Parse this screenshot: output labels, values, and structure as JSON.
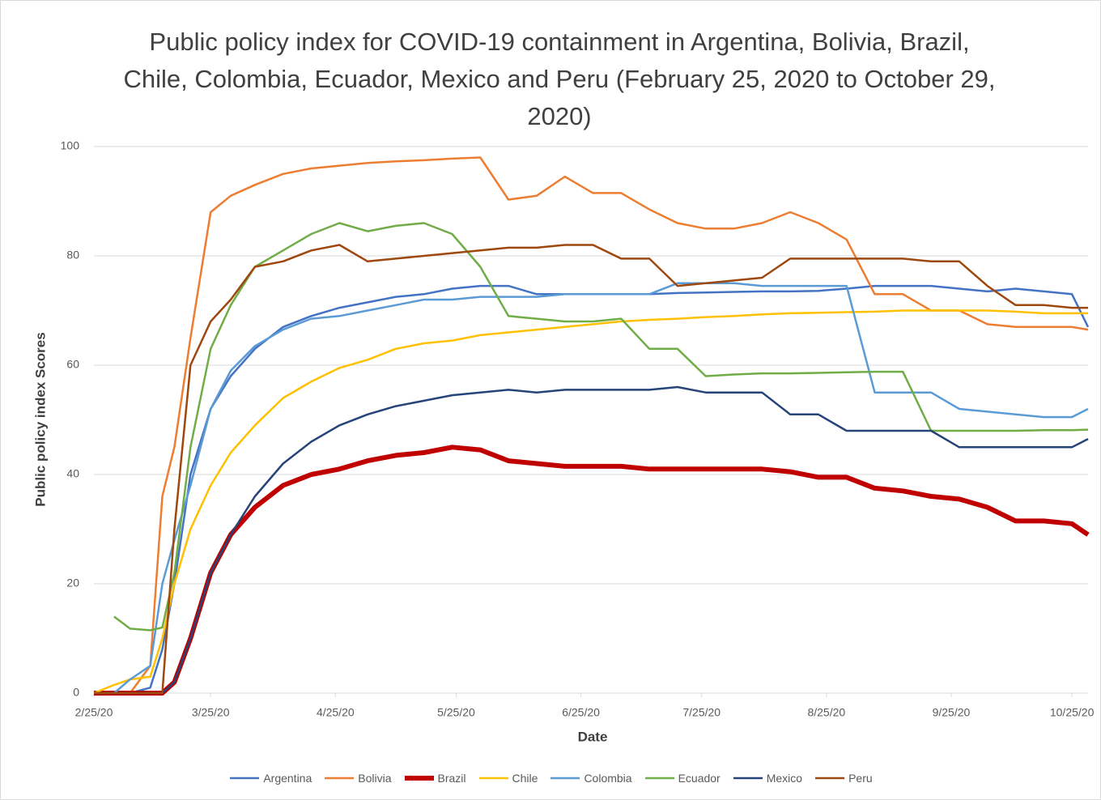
{
  "chart_data": {
    "type": "line",
    "title": "Public policy index for COVID-19 containment in Argentina, Bolivia, Brazil, Chile, Colombia, Ecuador, Mexico and Peru (February 25, 2020 to October 29, 2020)",
    "x_label": "Date",
    "y_label": "Public policy index Scores",
    "xlim": [
      "2020-02-25",
      "2020-10-29"
    ],
    "xticks": [
      {
        "value": "2020-02-25",
        "label": "2/25/20"
      },
      {
        "value": "2020-03-25",
        "label": "3/25/20"
      },
      {
        "value": "2020-04-25",
        "label": "4/25/20"
      },
      {
        "value": "2020-05-25",
        "label": "5/25/20"
      },
      {
        "value": "2020-06-25",
        "label": "6/25/20"
      },
      {
        "value": "2020-07-25",
        "label": "7/25/20"
      },
      {
        "value": "2020-08-25",
        "label": "8/25/20"
      },
      {
        "value": "2020-09-25",
        "label": "9/25/20"
      },
      {
        "value": "2020-10-25",
        "label": "10/25/20"
      }
    ],
    "ylim": [
      0,
      100
    ],
    "yticks": [
      0,
      20,
      40,
      60,
      80,
      100
    ],
    "grid": true,
    "legend": "bottom",
    "x": [
      "2020-02-25",
      "2020-03-01",
      "2020-03-05",
      "2020-03-10",
      "2020-03-13",
      "2020-03-16",
      "2020-03-20",
      "2020-03-25",
      "2020-03-30",
      "2020-04-05",
      "2020-04-12",
      "2020-04-19",
      "2020-04-26",
      "2020-05-03",
      "2020-05-10",
      "2020-05-17",
      "2020-05-24",
      "2020-05-31",
      "2020-06-07",
      "2020-06-14",
      "2020-06-21",
      "2020-06-28",
      "2020-07-05",
      "2020-07-12",
      "2020-07-19",
      "2020-07-26",
      "2020-08-02",
      "2020-08-09",
      "2020-08-16",
      "2020-08-23",
      "2020-08-30",
      "2020-09-06",
      "2020-09-13",
      "2020-09-20",
      "2020-09-27",
      "2020-10-04",
      "2020-10-11",
      "2020-10-18",
      "2020-10-25",
      "2020-10-29"
    ],
    "series": [
      {
        "name": "Argentina",
        "color": "#4472c4",
        "width": 2.5,
        "values": [
          0,
          0,
          0,
          1,
          8,
          20,
          40,
          52,
          58,
          63,
          67,
          69,
          70.5,
          71.5,
          72.5,
          73,
          74,
          74.5,
          74.5,
          73,
          73,
          73,
          73,
          73,
          73.2,
          73.3,
          73.4,
          73.5,
          73.5,
          73.6,
          74,
          74.5,
          74.5,
          74.5,
          74,
          73.5,
          74,
          73.5,
          73,
          67
        ]
      },
      {
        "name": "Bolivia",
        "color": "#ed7d31",
        "width": 2.5,
        "values": [
          0,
          0,
          0,
          5,
          36,
          45,
          65,
          88,
          91,
          93,
          95,
          96,
          96.5,
          97,
          97.3,
          97.5,
          97.8,
          98,
          90.3,
          91,
          94.5,
          91.5,
          91.5,
          88.5,
          86,
          85,
          85,
          86,
          88,
          86,
          83,
          73,
          73,
          70,
          70,
          67.5,
          67,
          67,
          67,
          66.5
        ]
      },
      {
        "name": "Brazil",
        "color": "#c00000",
        "width": 6,
        "values": [
          0,
          0,
          0,
          0,
          0,
          2,
          10,
          22,
          29,
          34,
          38,
          40,
          41,
          42.5,
          43.5,
          44,
          45,
          44.5,
          42.5,
          42,
          41.5,
          41.5,
          41.5,
          41,
          41,
          41,
          41,
          41,
          40.5,
          39.5,
          39.5,
          37.5,
          37,
          36,
          35.5,
          34,
          31.5,
          31.5,
          31,
          29
        ]
      },
      {
        "name": "Chile",
        "color": "#ffc000",
        "width": 2.5,
        "values": [
          0,
          1.5,
          2.5,
          3,
          10,
          20,
          30,
          38,
          44,
          49,
          54,
          57,
          59.5,
          61,
          63,
          64,
          64.5,
          65.5,
          66,
          66.5,
          67,
          67.5,
          68,
          68.3,
          68.5,
          68.8,
          69,
          69.3,
          69.5,
          69.6,
          69.7,
          69.8,
          70,
          70,
          70,
          70,
          69.8,
          69.5,
          69.5,
          69.5
        ]
      },
      {
        "name": "Colombia",
        "color": "#5b9bd5",
        "width": 2.5,
        "values": [
          0,
          0,
          2.5,
          5,
          20,
          28,
          38,
          52,
          59,
          63.5,
          66.5,
          68.5,
          69,
          70,
          71,
          72,
          72,
          72.5,
          72.5,
          72.5,
          73,
          73,
          73,
          73,
          75,
          75,
          75,
          74.5,
          74.5,
          74.5,
          74.5,
          55,
          55,
          55,
          52,
          51.5,
          51,
          50.5,
          50.5,
          52
        ]
      },
      {
        "name": "Ecuador",
        "color": "#70ad47",
        "width": 2.5,
        "values": [
          null,
          14,
          11.8,
          11.5,
          12,
          22,
          45,
          63,
          71,
          78,
          81,
          84,
          86,
          84.5,
          85.5,
          86,
          84,
          78,
          69,
          68.5,
          68,
          68,
          68.5,
          63,
          63,
          58,
          58.3,
          58.5,
          58.5,
          58.6,
          58.7,
          58.8,
          58.8,
          48,
          48,
          48,
          48,
          48.1,
          48.1,
          48.2
        ]
      },
      {
        "name": "Mexico",
        "color": "#264478",
        "width": 2.5,
        "values": [
          0,
          0,
          0,
          0,
          0,
          2,
          10,
          22,
          29,
          36,
          42,
          46,
          49,
          51,
          52.5,
          53.5,
          54.5,
          55,
          55.5,
          55,
          55.5,
          55.5,
          55.5,
          55.5,
          56,
          55,
          55,
          55,
          51,
          51,
          48,
          48,
          48,
          48,
          45,
          45,
          45,
          45,
          45,
          46.5
        ]
      },
      {
        "name": "Peru",
        "color": "#9e480e",
        "width": 2.5,
        "values": [
          0,
          0,
          0,
          0,
          0,
          30,
          60,
          68,
          72,
          78,
          79,
          81,
          82,
          79,
          79.5,
          80,
          80.5,
          81,
          81.5,
          81.5,
          82,
          82,
          79.5,
          79.5,
          74.5,
          75,
          75.5,
          76,
          79.5,
          79.5,
          79.5,
          79.5,
          79.5,
          79,
          79,
          74.5,
          71,
          71,
          70.5,
          70.5
        ]
      }
    ]
  }
}
